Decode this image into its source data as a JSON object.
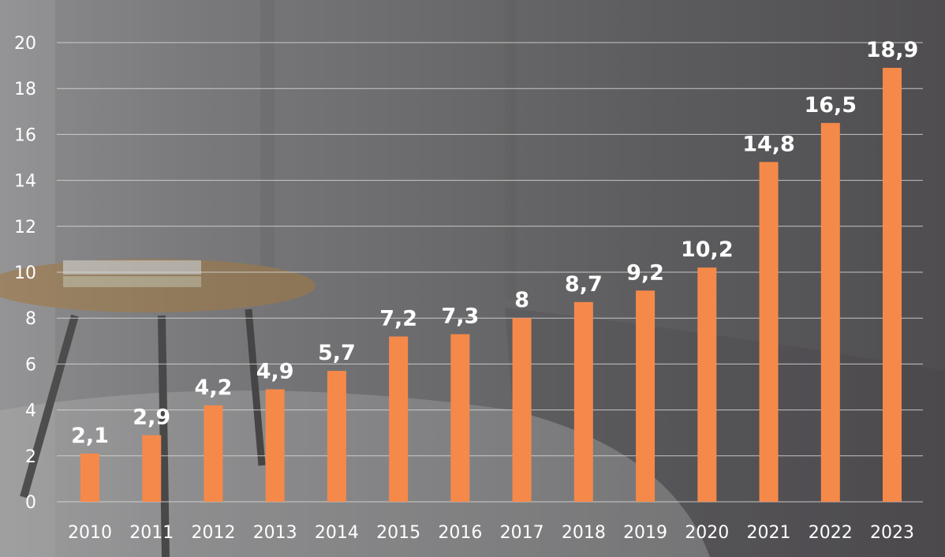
{
  "chart_data": {
    "type": "bar",
    "categories": [
      "2010",
      "2011",
      "2012",
      "2013",
      "2014",
      "2015",
      "2016",
      "2017",
      "2018",
      "2019",
      "2020",
      "2021",
      "2022",
      "2023"
    ],
    "values": [
      2.1,
      2.9,
      4.2,
      4.9,
      5.7,
      7.2,
      7.3,
      8,
      8.7,
      9.2,
      10.2,
      14.8,
      16.5,
      18.9
    ],
    "value_labels": [
      "2,1",
      "2,9",
      "4,2",
      "4,9",
      "5,7",
      "7,2",
      "7,3",
      "8",
      "8,7",
      "9,2",
      "10,2",
      "14,8",
      "16,5",
      "18,9"
    ],
    "yticks": [
      0,
      2,
      4,
      6,
      8,
      10,
      12,
      14,
      16,
      18,
      20
    ],
    "ylim": [
      0,
      20
    ],
    "grid": true,
    "bar_color": "#f5894a",
    "gridline_color": "#d9d9d9",
    "text_color": "#ffffff"
  }
}
